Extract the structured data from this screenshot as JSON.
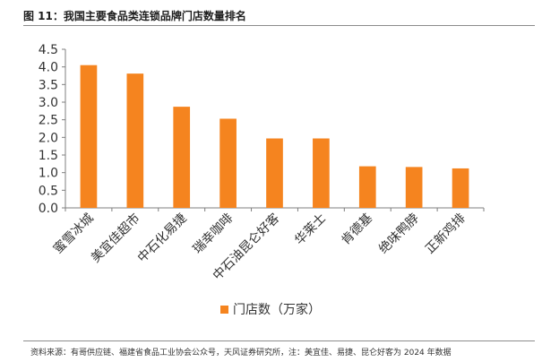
{
  "figure": {
    "title": "图 11：我国主要食品类连锁品牌门店数量排名",
    "source": "资料来源：有哥供应链、福建省食品工业协会公众号，天风证券研究所，注：美宜佳、易捷、昆仑好客为 2024 年数据"
  },
  "chart_data": {
    "type": "bar",
    "title": "",
    "xlabel": "",
    "ylabel": "",
    "categories": [
      "蜜雪冰城",
      "美宜佳超市",
      "中石化易捷",
      "瑞幸咖啡",
      "中石油昆仑好客",
      "华莱士",
      "肯德基",
      "绝味鸭脖",
      "正新鸡排"
    ],
    "series": [
      {
        "name": "门店数（万家）",
        "values": [
          4.05,
          3.81,
          2.87,
          2.53,
          1.97,
          1.97,
          1.18,
          1.16,
          1.12
        ],
        "color": "#F5841F"
      }
    ],
    "ylim": [
      0,
      4.5
    ],
    "yticks": [
      "0.0",
      "0.5",
      "1.0",
      "1.5",
      "2.0",
      "2.5",
      "3.0",
      "3.5",
      "4.0",
      "4.5"
    ],
    "grid": false,
    "legend_position": "bottom-center"
  }
}
